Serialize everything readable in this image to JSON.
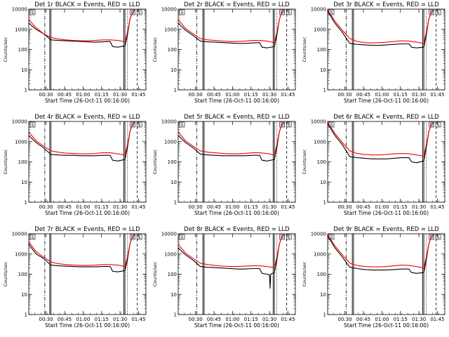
{
  "colors": {
    "events": "#000000",
    "lld": "#ff0000",
    "axis": "#000000"
  },
  "chart_data": {
    "type": "line",
    "layout": "3x3 grid",
    "ylabel": "Counts/sec",
    "xlabel": "Start Time (26-Oct-11 00:16:00)",
    "yscale": "log",
    "ylim": [
      1,
      10000
    ],
    "yticks": [
      1,
      10,
      100,
      1000,
      10000
    ],
    "ytick_labels": [
      "1",
      "10",
      "100",
      "1000",
      "10000"
    ],
    "x_unit": "minutes after 00:16:00",
    "xlim": [
      0,
      95
    ],
    "xticks": [
      14,
      29,
      44,
      59,
      74,
      89
    ],
    "xtick_labels": [
      "00:30",
      "00:45",
      "01:00",
      "01:15",
      "01:30",
      "01:45"
    ],
    "legend": "in title: BLACK = Events, RED = LLD",
    "panels": [
      {
        "title": "Det 1r BLACK = Events, RED = LLD",
        "corner_markers": [
          "S",
          "D",
          "S"
        ],
        "vlines_solid": [
          17,
          18,
          77,
          78
        ],
        "vlines_dotted": [
          80
        ],
        "vlines_dashdot": [
          13
        ],
        "vlines_dashed": [
          88
        ],
        "series": [
          {
            "name": "Events",
            "x": [
              0,
              6,
              12,
              18,
              24,
              30,
              36,
              42,
              48,
              54,
              60,
              66,
              68,
              72,
              78,
              80,
              82,
              84,
              86
            ],
            "y": [
              2000,
              1000,
              600,
              300,
              280,
              270,
              260,
              250,
              240,
              230,
              240,
              250,
              140,
              130,
              150,
              500,
              3000,
              7000,
              9000
            ]
          },
          {
            "name": "LLD",
            "x": [
              0,
              6,
              12,
              18,
              24,
              30,
              36,
              42,
              48,
              54,
              60,
              66,
              72,
              78,
              80,
              82,
              84,
              86
            ],
            "y": [
              3000,
              1200,
              600,
              400,
              330,
              300,
              280,
              270,
              270,
              280,
              300,
              300,
              280,
              240,
              700,
              3000,
              7000,
              9000
            ]
          }
        ]
      },
      {
        "title": "Det 2r BLACK = Events, RED = LLD",
        "corner_markers": [
          "S",
          "D",
          "S"
        ],
        "vlines_solid": [
          20,
          21,
          77,
          78
        ],
        "vlines_dotted": [
          80
        ],
        "vlines_dashdot": [
          15
        ],
        "vlines_dashed": [
          88
        ],
        "series": [
          {
            "name": "Events",
            "x": [
              0,
              6,
              12,
              18,
              24,
              30,
              36,
              42,
              48,
              54,
              60,
              66,
              68,
              72,
              78,
              80,
              82,
              84,
              86
            ],
            "y": [
              2000,
              900,
              500,
              260,
              240,
              230,
              220,
              210,
              200,
              200,
              210,
              220,
              130,
              120,
              140,
              500,
              3000,
              7000,
              9000
            ]
          },
          {
            "name": "LLD",
            "x": [
              0,
              6,
              12,
              18,
              24,
              30,
              36,
              42,
              48,
              54,
              60,
              66,
              72,
              78,
              80,
              82,
              84,
              86
            ],
            "y": [
              3000,
              1100,
              600,
              350,
              300,
              280,
              260,
              250,
              250,
              260,
              280,
              280,
              260,
              220,
              700,
              3000,
              7000,
              9000
            ]
          }
        ]
      },
      {
        "title": "Det 3r BLACK = Events, RED = LLD",
        "corner_markers": [
          "S",
          "D",
          "S"
        ],
        "vlines_solid": [
          20,
          21,
          77,
          78
        ],
        "vlines_dotted": [
          80
        ],
        "vlines_dashdot": [
          15
        ],
        "vlines_dashed": [
          88
        ],
        "series": [
          {
            "name": "Events",
            "x": [
              0,
              6,
              12,
              18,
              24,
              30,
              36,
              42,
              48,
              54,
              60,
              66,
              68,
              72,
              78,
              80,
              82,
              84,
              86
            ],
            "y": [
              8000,
              2000,
              700,
              200,
              180,
              170,
              160,
              160,
              170,
              180,
              190,
              190,
              130,
              120,
              130,
              500,
              3000,
              7000,
              9000
            ]
          },
          {
            "name": "LLD",
            "x": [
              0,
              6,
              12,
              18,
              24,
              30,
              36,
              42,
              48,
              54,
              60,
              66,
              72,
              78,
              80,
              82,
              84,
              86
            ],
            "y": [
              9000,
              2500,
              900,
              350,
              250,
              220,
              210,
              220,
              230,
              250,
              270,
              260,
              230,
              200,
              700,
              3000,
              7000,
              9000
            ]
          }
        ]
      },
      {
        "title": "Det 4r BLACK = Events, RED = LLD",
        "corner_markers": [
          "S",
          "D",
          "S"
        ],
        "vlines_solid": [
          17,
          18,
          77,
          78
        ],
        "vlines_dotted": [
          80
        ],
        "vlines_dashdot": [
          13
        ],
        "vlines_dashed": [
          88
        ],
        "series": [
          {
            "name": "Events",
            "x": [
              0,
              6,
              12,
              18,
              24,
              30,
              36,
              42,
              48,
              54,
              60,
              66,
              68,
              72,
              78,
              80,
              82,
              84,
              86
            ],
            "y": [
              2000,
              900,
              500,
              230,
              220,
              210,
              210,
              200,
              200,
              200,
              210,
              210,
              120,
              110,
              130,
              500,
              3000,
              7000,
              9000
            ]
          },
          {
            "name": "LLD",
            "x": [
              0,
              6,
              12,
              18,
              24,
              30,
              36,
              42,
              48,
              54,
              60,
              66,
              72,
              78,
              80,
              82,
              84,
              86
            ],
            "y": [
              3000,
              1100,
              600,
              350,
              300,
              270,
              260,
              250,
              250,
              260,
              280,
              280,
              250,
              220,
              700,
              3000,
              7000,
              9000
            ]
          }
        ]
      },
      {
        "title": "Det 5r BLACK = Events, RED = LLD",
        "corner_markers": [
          "S",
          "D",
          "S"
        ],
        "vlines_solid": [
          20,
          21,
          77,
          78
        ],
        "vlines_dotted": [
          80
        ],
        "vlines_dashdot": [
          15
        ],
        "vlines_dashed": [
          88
        ],
        "series": [
          {
            "name": "Events",
            "x": [
              0,
              6,
              12,
              18,
              24,
              30,
              36,
              42,
              48,
              54,
              60,
              66,
              68,
              72,
              78,
              80,
              82,
              84,
              86
            ],
            "y": [
              2000,
              900,
              500,
              240,
              220,
              210,
              200,
              200,
              200,
              200,
              210,
              210,
              120,
              110,
              130,
              500,
              3000,
              7000,
              9000
            ]
          },
          {
            "name": "LLD",
            "x": [
              0,
              6,
              12,
              18,
              24,
              30,
              36,
              42,
              48,
              54,
              60,
              66,
              72,
              78,
              80,
              82,
              84,
              86
            ],
            "y": [
              3000,
              1100,
              600,
              350,
              300,
              280,
              260,
              250,
              250,
              260,
              280,
              280,
              260,
              220,
              700,
              3000,
              7000,
              9000
            ]
          }
        ]
      },
      {
        "title": "Det 6r BLACK = Events, RED = LLD",
        "corner_markers": [
          "S",
          "D",
          "S"
        ],
        "vlines_solid": [
          20,
          21,
          77,
          78
        ],
        "vlines_dotted": [
          80
        ],
        "vlines_dashdot": [
          15
        ],
        "vlines_dashed": [
          88
        ],
        "series": [
          {
            "name": "Events",
            "x": [
              0,
              6,
              12,
              18,
              24,
              30,
              36,
              42,
              48,
              54,
              60,
              66,
              68,
              72,
              78,
              80,
              82,
              84,
              86
            ],
            "y": [
              8000,
              2000,
              700,
              180,
              160,
              150,
              140,
              140,
              140,
              150,
              160,
              160,
              100,
              90,
              110,
              500,
              3000,
              7000,
              9000
            ]
          },
          {
            "name": "LLD",
            "x": [
              0,
              6,
              12,
              18,
              24,
              30,
              36,
              42,
              48,
              54,
              60,
              66,
              72,
              78,
              80,
              82,
              84,
              86
            ],
            "y": [
              9000,
              2500,
              900,
              350,
              260,
              230,
              220,
              220,
              230,
              250,
              260,
              250,
              220,
              190,
              700,
              3000,
              7000,
              9000
            ]
          }
        ]
      },
      {
        "title": "Det 7r BLACK = Events, RED = LLD",
        "corner_markers": [
          "S",
          "D",
          "S"
        ],
        "vlines_solid": [
          17,
          18,
          77,
          78
        ],
        "vlines_dotted": [
          80
        ],
        "vlines_dashdot": [
          13
        ],
        "vlines_dashed": [
          88
        ],
        "series": [
          {
            "name": "Events",
            "x": [
              0,
              6,
              12,
              18,
              24,
              30,
              36,
              42,
              48,
              54,
              60,
              66,
              68,
              72,
              78,
              80,
              82,
              84,
              86
            ],
            "y": [
              3000,
              1000,
              600,
              280,
              260,
              250,
              240,
              230,
              230,
              230,
              240,
              240,
              140,
              130,
              150,
              500,
              3000,
              7000,
              9000
            ]
          },
          {
            "name": "LLD",
            "x": [
              0,
              6,
              12,
              18,
              24,
              30,
              36,
              42,
              48,
              54,
              60,
              66,
              72,
              78,
              80,
              82,
              84,
              86
            ],
            "y": [
              4000,
              1300,
              700,
              400,
              330,
              300,
              280,
              270,
              270,
              280,
              300,
              300,
              280,
              240,
              700,
              3000,
              7000,
              9000
            ]
          }
        ]
      },
      {
        "title": "Det 8r BLACK = Events, RED = LLD",
        "corner_markers": [
          "S",
          "D",
          "S"
        ],
        "vlines_solid": [
          20,
          21,
          77,
          78
        ],
        "vlines_dotted": [
          80
        ],
        "vlines_dashdot": [
          15
        ],
        "vlines_dashed": [
          88
        ],
        "series": [
          {
            "name": "Events",
            "x": [
              0,
              6,
              12,
              18,
              24,
              30,
              36,
              42,
              48,
              54,
              60,
              66,
              68,
              72,
              74,
              74.5,
              75,
              78,
              80,
              82,
              84,
              86
            ],
            "y": [
              2000,
              900,
              500,
              240,
              220,
              210,
              200,
              190,
              180,
              180,
              190,
              190,
              110,
              100,
              90,
              20,
              100,
              120,
              500,
              3000,
              7000,
              9000
            ]
          },
          {
            "name": "LLD",
            "x": [
              0,
              6,
              12,
              18,
              24,
              30,
              36,
              42,
              48,
              54,
              60,
              66,
              72,
              78,
              80,
              82,
              84,
              86
            ],
            "y": [
              3000,
              1100,
              600,
              350,
              300,
              270,
              250,
              240,
              240,
              250,
              260,
              260,
              240,
              210,
              700,
              3000,
              7000,
              9000
            ]
          }
        ]
      },
      {
        "title": "Det 9r BLACK = Events, RED = LLD",
        "corner_markers": [
          "S",
          "D",
          "S"
        ],
        "vlines_solid": [
          20,
          21,
          77,
          78
        ],
        "vlines_dotted": [
          80
        ],
        "vlines_dashdot": [
          15
        ],
        "vlines_dashed": [
          88
        ],
        "series": [
          {
            "name": "Events",
            "x": [
              0,
              6,
              12,
              18,
              24,
              30,
              36,
              42,
              48,
              54,
              60,
              66,
              68,
              72,
              78,
              80,
              82,
              84,
              86
            ],
            "y": [
              8000,
              2000,
              700,
              220,
              190,
              170,
              160,
              160,
              160,
              170,
              180,
              180,
              120,
              110,
              120,
              500,
              3000,
              7000,
              9000
            ]
          },
          {
            "name": "LLD",
            "x": [
              0,
              6,
              12,
              18,
              24,
              30,
              36,
              42,
              48,
              54,
              60,
              66,
              72,
              78,
              80,
              82,
              84,
              86
            ],
            "y": [
              9000,
              2500,
              900,
              350,
              270,
              240,
              230,
              230,
              240,
              260,
              280,
              270,
              240,
              200,
              700,
              3000,
              7000,
              9000
            ]
          }
        ]
      }
    ]
  }
}
